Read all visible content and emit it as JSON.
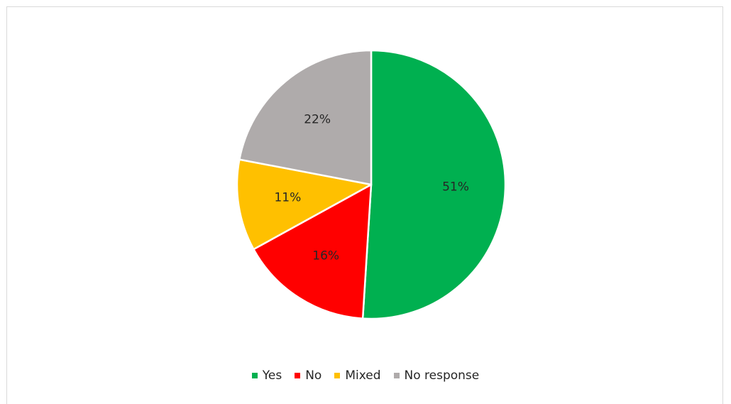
{
  "chart_data": {
    "type": "pie",
    "title": "",
    "categories": [
      "Yes",
      "No",
      "Mixed",
      "No response"
    ],
    "values": [
      51,
      16,
      11,
      22
    ],
    "labels": [
      "51%",
      "16%",
      "11%",
      "22%"
    ],
    "colors": [
      "#00b050",
      "#ff0000",
      "#ffc000",
      "#afabab"
    ],
    "legend_position": "bottom",
    "start_angle": "12 o'clock, clockwise"
  }
}
